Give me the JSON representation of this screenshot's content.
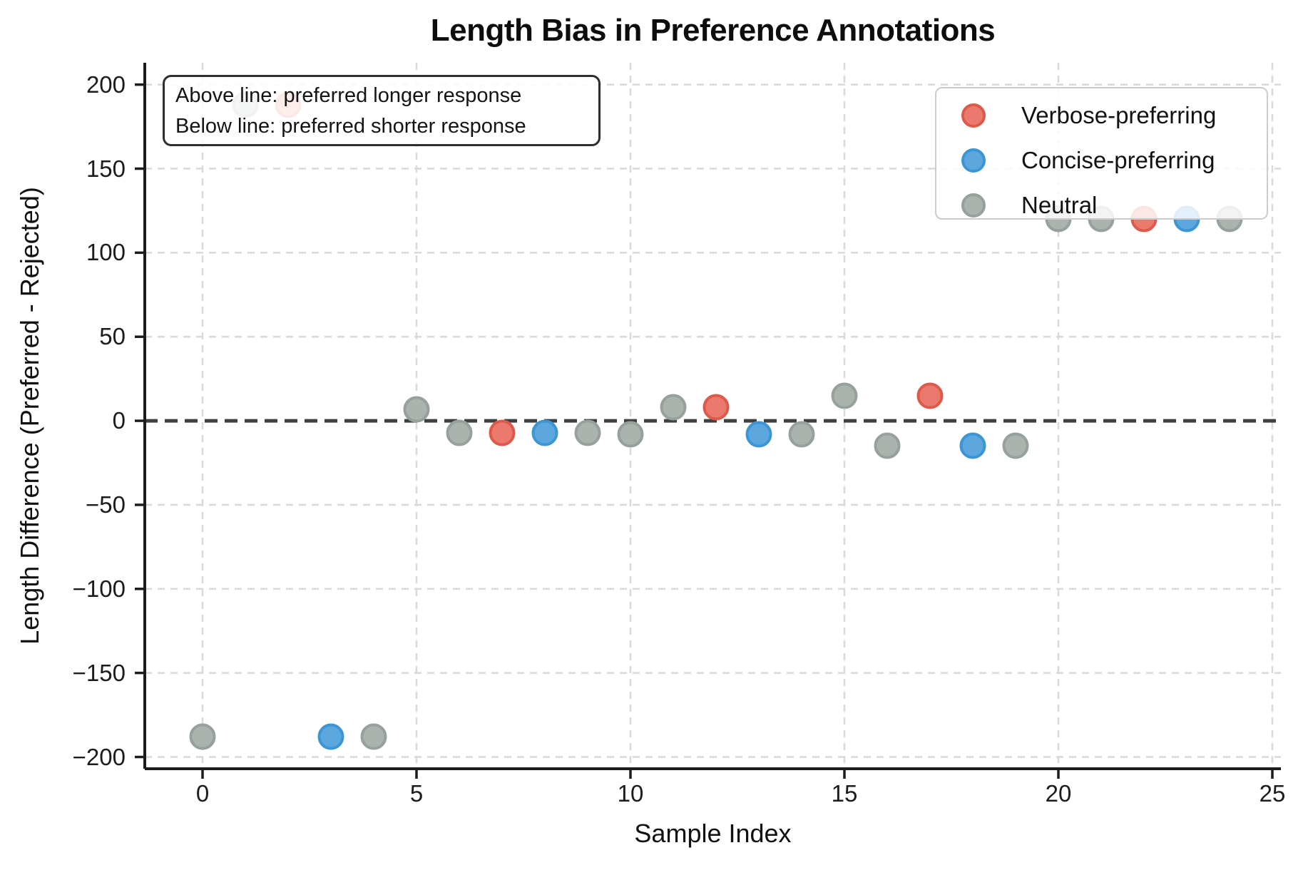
{
  "title": "Length Bias in Preference Annotations",
  "annotation_box": {
    "line1": "Above line: preferred longer response",
    "line2": "Below line: preferred shorter response"
  },
  "legend": {
    "items": [
      {
        "label": "Verbose-preferring",
        "key": "verbose"
      },
      {
        "label": "Concise-preferring",
        "key": "concise"
      },
      {
        "label": "Neutral",
        "key": "neutral"
      }
    ]
  },
  "colors": {
    "verbose": {
      "face": "#ec796d",
      "edge": "#db5a4a"
    },
    "concise": {
      "face": "#5ca8de",
      "edge": "#3d96d3"
    },
    "neutral": {
      "face": "#abb3ae",
      "edge": "#96a19c"
    },
    "grid": "#d9d9d9",
    "zero_line": "#404040",
    "spine": "#1c1c1c",
    "background": "#ffffff"
  },
  "chart_data": {
    "type": "scatter",
    "title": "Length Bias in Preference Annotations",
    "xlabel": "Sample Index",
    "ylabel": "Length Difference (Preferred - Rejected)",
    "xlim": [
      -1.35,
      25.2
    ],
    "ylim": [
      -207,
      213
    ],
    "x_ticks": [
      0,
      5,
      10,
      15,
      20,
      25
    ],
    "y_ticks": [
      {
        "v": 200,
        "label": "200"
      },
      {
        "v": 150,
        "label": "150"
      },
      {
        "v": 100,
        "label": "100"
      },
      {
        "v": 50,
        "label": "50"
      },
      {
        "v": 0,
        "label": "0"
      },
      {
        "v": -50,
        "label": "−50"
      },
      {
        "v": -100,
        "label": "−100"
      },
      {
        "v": -150,
        "label": "−150"
      },
      {
        "v": -200,
        "label": "−200"
      }
    ],
    "grid": true,
    "zero_line_y": 0,
    "legend_position": "upper right",
    "series": [
      {
        "name": "Verbose-preferring",
        "color_key": "verbose",
        "points": [
          [
            2,
            188
          ],
          [
            7,
            -7
          ],
          [
            12,
            8
          ],
          [
            17,
            15
          ],
          [
            22,
            120
          ]
        ]
      },
      {
        "name": "Concise-preferring",
        "color_key": "concise",
        "points": [
          [
            3,
            -188
          ],
          [
            8,
            -7
          ],
          [
            13,
            -8
          ],
          [
            18,
            -15
          ],
          [
            23,
            120
          ]
        ]
      },
      {
        "name": "Neutral",
        "color_key": "neutral",
        "points": [
          [
            0,
            -188
          ],
          [
            1,
            188
          ],
          [
            4,
            -188
          ],
          [
            5,
            7
          ],
          [
            6,
            -7
          ],
          [
            9,
            -7
          ],
          [
            10,
            -8
          ],
          [
            11,
            8
          ],
          [
            14,
            -8
          ],
          [
            15,
            15
          ],
          [
            16,
            -15
          ],
          [
            19,
            -15
          ],
          [
            20,
            120
          ],
          [
            21,
            120
          ],
          [
            24,
            120
          ]
        ]
      }
    ]
  }
}
